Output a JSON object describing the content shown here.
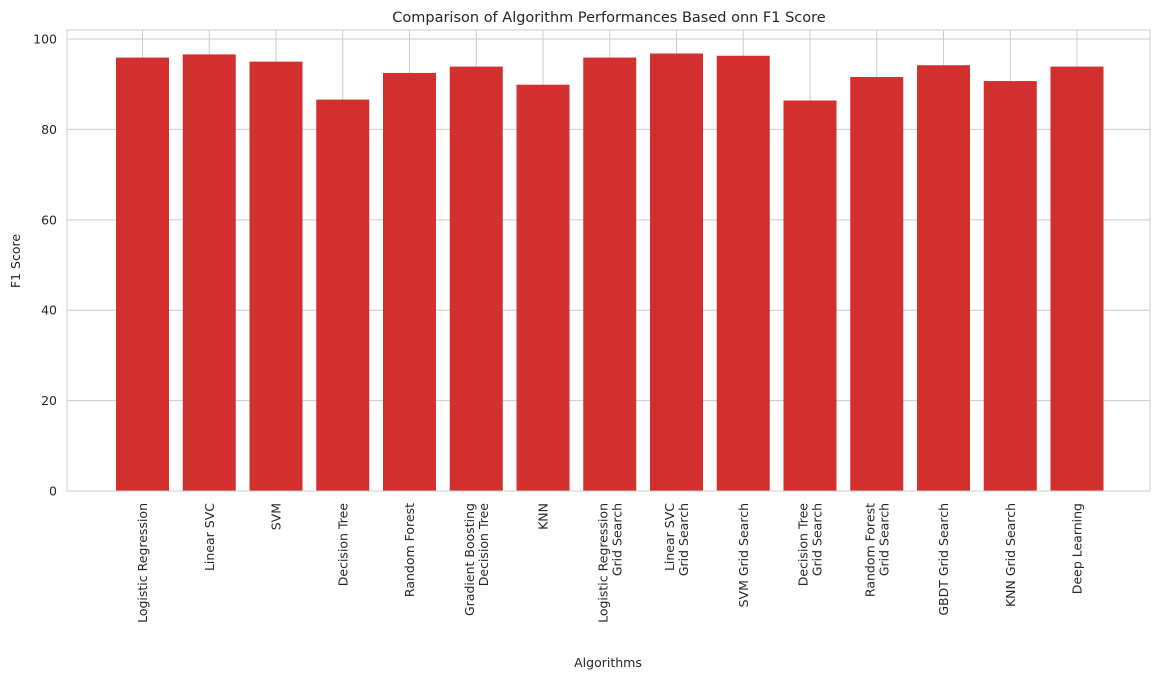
{
  "chart_data": {
    "type": "bar",
    "title": "Comparison of Algorithm Performances Based onn F1 Score",
    "xlabel": "Algorithms",
    "ylabel": "F1 Score",
    "ylim": [
      0,
      102
    ],
    "yticks": [
      0,
      20,
      40,
      60,
      80,
      100
    ],
    "grid": true,
    "bar_color": "#d22f2f",
    "categories": [
      "Logistic Regression",
      "Linear SVC",
      "SVM",
      "Decision Tree",
      "Random Forest",
      "Gradient Boosting\nDecision Tree",
      "KNN",
      "Logistic Regression\nGrid Search",
      "Linear SVC\nGrid Search",
      "SVM Grid Search",
      "Decision Tree\nGrid Search",
      "Random Forest\nGrid Search",
      "GBDT Grid Search",
      "KNN Grid Search",
      "Deep Learning"
    ],
    "values": [
      95.9,
      96.6,
      95.0,
      86.6,
      92.5,
      93.9,
      89.9,
      95.9,
      96.8,
      96.3,
      86.4,
      91.6,
      94.2,
      90.7,
      93.9
    ]
  }
}
